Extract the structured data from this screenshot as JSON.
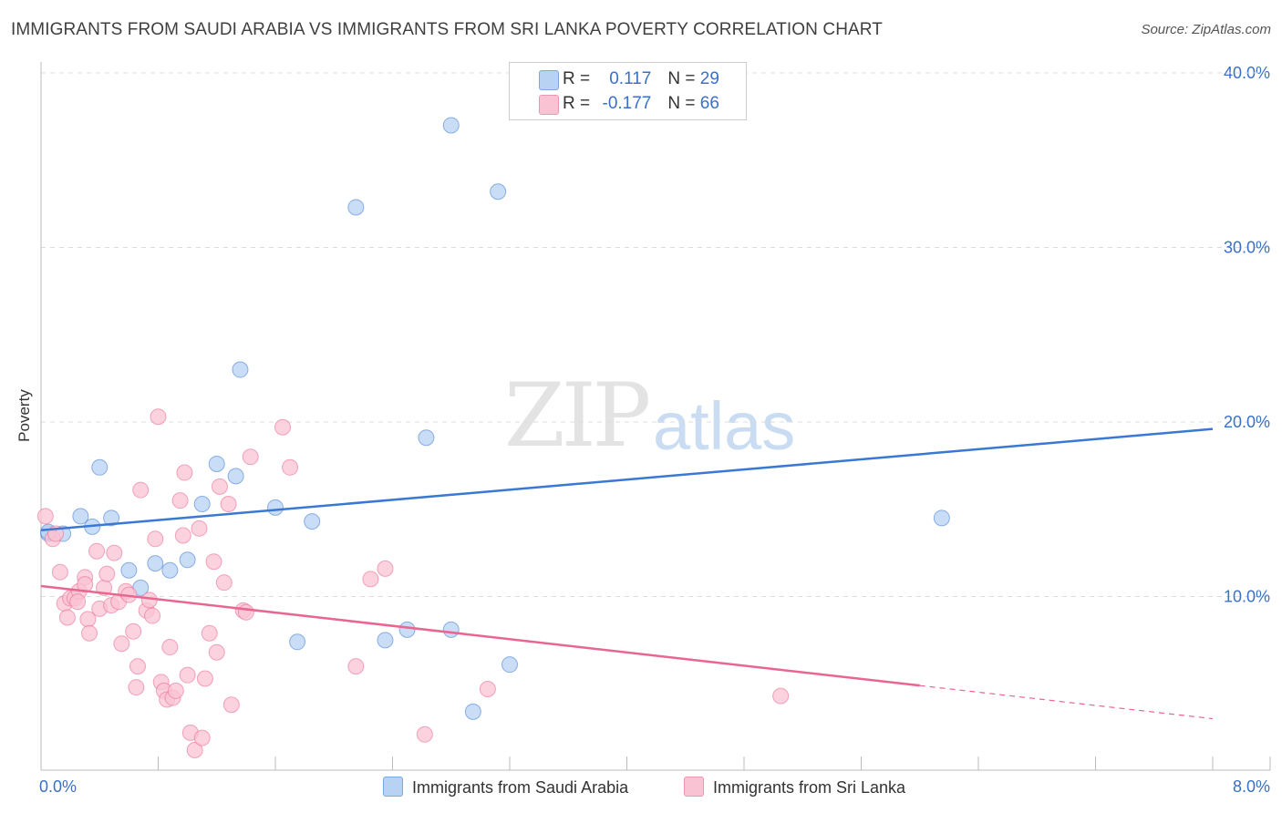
{
  "title": "IMMIGRANTS FROM SAUDI ARABIA VS IMMIGRANTS FROM SRI LANKA POVERTY CORRELATION CHART",
  "source": "Source: ZipAtlas.com",
  "watermark": {
    "zip": "ZIP",
    "atlas": "atlas"
  },
  "legend": {
    "rows": [
      {
        "r_label": "R = ",
        "r_value": "0.117",
        "n_label": "N = ",
        "n_value": "29",
        "color": "#b8d2f3"
      },
      {
        "r_label": "R = ",
        "r_value": "-0.177",
        "n_label": "N = ",
        "n_value": "66",
        "color": "#f9c3d3"
      }
    ]
  },
  "bottom_legend": [
    "Immigrants from Saudi Arabia",
    "Immigrants from Sri Lanka"
  ],
  "chart_data": {
    "type": "scatter",
    "title": "IMMIGRANTS FROM SAUDI ARABIA VS IMMIGRANTS FROM SRI LANKA POVERTY CORRELATION CHART",
    "xlabel": "",
    "ylabel": "Poverty",
    "xlim": [
      0,
      8
    ],
    "ylim": [
      0,
      40
    ],
    "x_tick_labels": [
      "0.0%",
      "8.0%"
    ],
    "y_ticks": [
      10,
      20,
      30,
      40
    ],
    "y_tick_labels": [
      "10.0%",
      "20.0%",
      "30.0%",
      "40.0%"
    ],
    "grid": true,
    "series": [
      {
        "name": "Immigrants from Saudi Arabia",
        "color": "#3a78d4",
        "fill": "#b8d2f3",
        "points": [
          [
            0.05,
            13.6
          ],
          [
            0.15,
            13.6
          ],
          [
            0.27,
            14.6
          ],
          [
            0.35,
            14.0
          ],
          [
            0.4,
            17.4
          ],
          [
            0.48,
            14.5
          ],
          [
            0.6,
            11.5
          ],
          [
            0.68,
            10.5
          ],
          [
            0.78,
            11.9
          ],
          [
            0.88,
            11.5
          ],
          [
            1.0,
            12.1
          ],
          [
            1.1,
            15.3
          ],
          [
            1.2,
            17.6
          ],
          [
            1.33,
            16.9
          ],
          [
            1.36,
            23.0
          ],
          [
            1.6,
            15.1
          ],
          [
            1.85,
            14.3
          ],
          [
            2.15,
            32.3
          ],
          [
            2.35,
            7.5
          ],
          [
            2.5,
            8.1
          ],
          [
            2.63,
            19.1
          ],
          [
            2.8,
            8.1
          ],
          [
            1.75,
            7.4
          ],
          [
            2.8,
            37.0
          ],
          [
            3.12,
            33.2
          ],
          [
            3.2,
            6.1
          ],
          [
            2.95,
            3.4
          ],
          [
            6.15,
            14.5
          ],
          [
            0.05,
            13.7
          ]
        ],
        "trend": {
          "x": [
            0,
            8
          ],
          "y": [
            13.8,
            19.6
          ],
          "dashed_from": null
        }
      },
      {
        "name": "Immigrants from Sri Lanka",
        "color": "#e8668f",
        "fill": "#f9c3d3",
        "points": [
          [
            0.03,
            14.6
          ],
          [
            0.08,
            13.3
          ],
          [
            0.1,
            13.6
          ],
          [
            0.13,
            11.4
          ],
          [
            0.16,
            9.6
          ],
          [
            0.2,
            9.9
          ],
          [
            0.18,
            8.8
          ],
          [
            0.23,
            9.9
          ],
          [
            0.26,
            10.3
          ],
          [
            0.25,
            9.7
          ],
          [
            0.3,
            11.1
          ],
          [
            0.32,
            8.7
          ],
          [
            0.3,
            10.7
          ],
          [
            0.33,
            7.9
          ],
          [
            0.38,
            12.6
          ],
          [
            0.4,
            9.3
          ],
          [
            0.43,
            10.5
          ],
          [
            0.45,
            11.3
          ],
          [
            0.48,
            9.5
          ],
          [
            0.5,
            12.5
          ],
          [
            0.53,
            9.7
          ],
          [
            0.55,
            7.3
          ],
          [
            0.58,
            10.3
          ],
          [
            0.6,
            10.1
          ],
          [
            0.63,
            8.0
          ],
          [
            0.65,
            4.8
          ],
          [
            0.66,
            6.0
          ],
          [
            0.68,
            16.1
          ],
          [
            0.72,
            9.2
          ],
          [
            0.74,
            9.8
          ],
          [
            0.76,
            8.9
          ],
          [
            0.78,
            13.3
          ],
          [
            0.8,
            20.3
          ],
          [
            0.82,
            5.1
          ],
          [
            0.84,
            4.6
          ],
          [
            0.86,
            4.1
          ],
          [
            0.88,
            7.1
          ],
          [
            0.9,
            4.2
          ],
          [
            0.92,
            4.6
          ],
          [
            0.95,
            15.5
          ],
          [
            0.97,
            13.5
          ],
          [
            0.98,
            17.1
          ],
          [
            1.0,
            5.5
          ],
          [
            1.02,
            2.2
          ],
          [
            1.05,
            1.2
          ],
          [
            1.08,
            13.9
          ],
          [
            1.1,
            1.9
          ],
          [
            1.12,
            5.3
          ],
          [
            1.15,
            7.9
          ],
          [
            1.18,
            12.0
          ],
          [
            1.2,
            6.8
          ],
          [
            1.22,
            16.3
          ],
          [
            1.25,
            10.8
          ],
          [
            1.28,
            15.3
          ],
          [
            1.3,
            3.8
          ],
          [
            1.38,
            9.2
          ],
          [
            1.4,
            9.1
          ],
          [
            1.43,
            18.0
          ],
          [
            1.65,
            19.7
          ],
          [
            1.7,
            17.4
          ],
          [
            2.15,
            6.0
          ],
          [
            2.25,
            11.0
          ],
          [
            2.35,
            11.6
          ],
          [
            2.62,
            2.1
          ],
          [
            3.05,
            4.7
          ],
          [
            5.05,
            4.3
          ]
        ],
        "trend": {
          "x": [
            0,
            8
          ],
          "y": [
            10.6,
            3.0
          ],
          "dashed_from": 6.0
        }
      }
    ]
  }
}
